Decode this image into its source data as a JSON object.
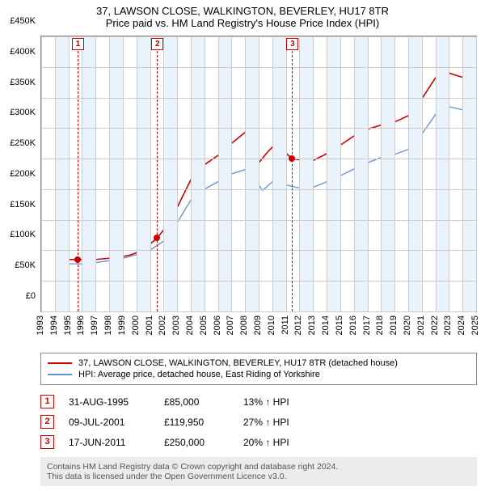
{
  "title_line1": "37, LAWSON CLOSE, WALKINGTON, BEVERLEY, HU17 8TR",
  "title_line2": "Price paid vs. HM Land Registry's House Price Index (HPI)",
  "chart": {
    "background_color": "#ffffff",
    "grid_color": "#cccccc",
    "band_color": "#eaf2fb",
    "marker_color": "#cc0000",
    "y": {
      "min": 0,
      "max": 450000,
      "step": 50000,
      "labels": [
        "£0",
        "£50K",
        "£100K",
        "£150K",
        "£200K",
        "£250K",
        "£300K",
        "£350K",
        "£400K",
        "£450K"
      ]
    },
    "x": {
      "min": 1993,
      "max": 2025,
      "step": 1,
      "labels": [
        "1993",
        "1994",
        "1995",
        "1996",
        "1997",
        "1998",
        "1999",
        "2000",
        "2001",
        "2002",
        "2003",
        "2004",
        "2005",
        "2006",
        "2007",
        "2008",
        "2009",
        "2010",
        "2011",
        "2012",
        "2013",
        "2014",
        "2015",
        "2016",
        "2017",
        "2018",
        "2019",
        "2020",
        "2021",
        "2022",
        "2023",
        "2024",
        "2025"
      ],
      "bands_start_on_even": false
    },
    "series": [
      {
        "name": "37, LAWSON CLOSE, WALKINGTON, BEVERLEY, HU17 8TR (detached house)",
        "color": "#cc0000",
        "width": 1.6,
        "points": [
          [
            1995.0,
            85000
          ],
          [
            1995.67,
            85000
          ],
          [
            1996.5,
            84000
          ],
          [
            1997.5,
            86000
          ],
          [
            1998.5,
            88000
          ],
          [
            1999.5,
            92000
          ],
          [
            2000.5,
            100000
          ],
          [
            2001.0,
            110000
          ],
          [
            2001.52,
            119950
          ],
          [
            2002.0,
            133000
          ],
          [
            2003.0,
            170000
          ],
          [
            2004.0,
            215000
          ],
          [
            2005.0,
            240000
          ],
          [
            2006.0,
            255000
          ],
          [
            2007.0,
            275000
          ],
          [
            2008.0,
            293000
          ],
          [
            2008.6,
            275000
          ],
          [
            2009.0,
            243000
          ],
          [
            2009.7,
            262000
          ],
          [
            2010.3,
            275000
          ],
          [
            2010.8,
            263000
          ],
          [
            2011.46,
            250000
          ],
          [
            2012.0,
            248000
          ],
          [
            2013.0,
            247000
          ],
          [
            2014.0,
            258000
          ],
          [
            2015.0,
            272000
          ],
          [
            2016.0,
            287000
          ],
          [
            2017.0,
            298000
          ],
          [
            2018.0,
            305000
          ],
          [
            2019.0,
            310000
          ],
          [
            2020.0,
            320000
          ],
          [
            2021.0,
            348000
          ],
          [
            2022.0,
            382000
          ],
          [
            2023.0,
            390000
          ],
          [
            2024.0,
            383000
          ],
          [
            2025.0,
            402000
          ]
        ]
      },
      {
        "name": "HPI: Average price, detached house, East Riding of Yorkshire",
        "color": "#5b8fd6",
        "width": 1.3,
        "points": [
          [
            1995.0,
            78000
          ],
          [
            1996.0,
            78000
          ],
          [
            1997.0,
            80000
          ],
          [
            1998.0,
            83000
          ],
          [
            1999.0,
            87000
          ],
          [
            2000.0,
            93000
          ],
          [
            2001.0,
            100000
          ],
          [
            2002.0,
            115000
          ],
          [
            2003.0,
            145000
          ],
          [
            2004.0,
            182000
          ],
          [
            2005.0,
            200000
          ],
          [
            2006.0,
            212000
          ],
          [
            2007.0,
            225000
          ],
          [
            2008.0,
            232000
          ],
          [
            2008.7,
            215000
          ],
          [
            2009.3,
            198000
          ],
          [
            2010.0,
            212000
          ],
          [
            2011.0,
            207000
          ],
          [
            2012.0,
            202000
          ],
          [
            2013.0,
            203000
          ],
          [
            2014.0,
            212000
          ],
          [
            2015.0,
            222000
          ],
          [
            2016.0,
            233000
          ],
          [
            2017.0,
            243000
          ],
          [
            2018.0,
            252000
          ],
          [
            2019.0,
            257000
          ],
          [
            2020.0,
            265000
          ],
          [
            2021.0,
            290000
          ],
          [
            2022.0,
            322000
          ],
          [
            2023.0,
            335000
          ],
          [
            2024.0,
            330000
          ],
          [
            2025.0,
            345000
          ]
        ]
      }
    ],
    "markers": [
      {
        "n": "1",
        "x": 1995.67,
        "y": 85000
      },
      {
        "n": "2",
        "x": 2001.52,
        "y": 119950
      },
      {
        "n": "3",
        "x": 2011.46,
        "y": 250000
      }
    ]
  },
  "legend": [
    {
      "color": "#cc0000",
      "text": "37, LAWSON CLOSE, WALKINGTON, BEVERLEY, HU17 8TR (detached house)"
    },
    {
      "color": "#5b8fd6",
      "text": "HPI: Average price, detached house, East Riding of Yorkshire"
    }
  ],
  "events": [
    {
      "n": "1",
      "date": "31-AUG-1995",
      "price": "£85,000",
      "hpi": "13% ↑ HPI"
    },
    {
      "n": "2",
      "date": "09-JUL-2001",
      "price": "£119,950",
      "hpi": "27% ↑ HPI"
    },
    {
      "n": "3",
      "date": "17-JUN-2011",
      "price": "£250,000",
      "hpi": "20% ↑ HPI"
    }
  ],
  "footer_line1": "Contains HM Land Registry data © Crown copyright and database right 2024.",
  "footer_line2": "This data is licensed under the Open Government Licence v3.0."
}
